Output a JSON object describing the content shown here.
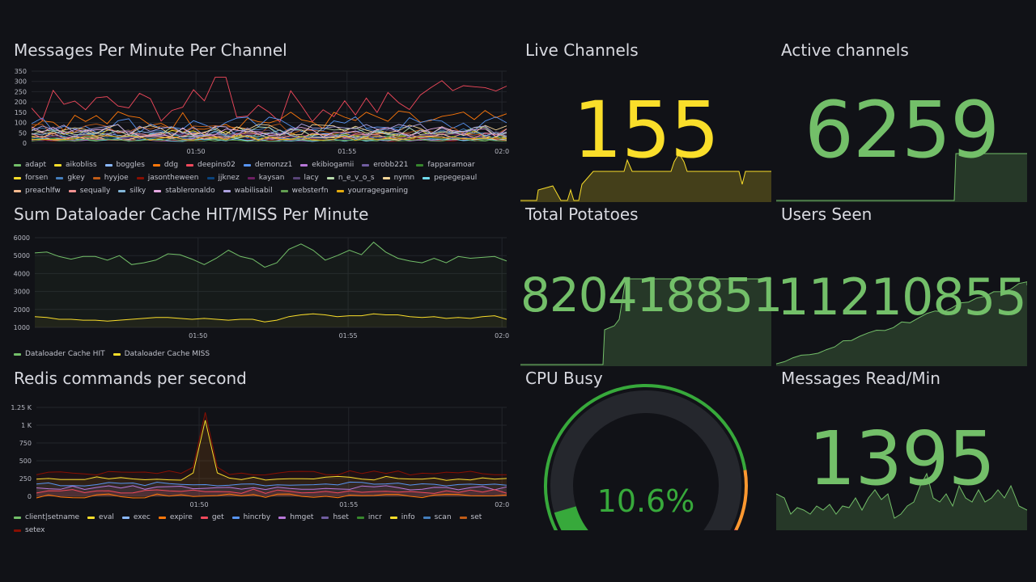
{
  "colors": {
    "green": "#73bf69",
    "yellow": "#fade2a",
    "red": "#f2495c",
    "orange": "#ff9830",
    "gaugeGreen": "#37a93b"
  },
  "messages_panel": {
    "title": "Messages Per Minute Per Channel",
    "legend": [
      {
        "name": "adapt",
        "color": "#73bf69"
      },
      {
        "name": "aikobliss",
        "color": "#fade2a"
      },
      {
        "name": "boggles",
        "color": "#8ab8ff"
      },
      {
        "name": "ddg",
        "color": "#ff780a"
      },
      {
        "name": "deepins02",
        "color": "#f2495c"
      },
      {
        "name": "demonzz1",
        "color": "#5794f2"
      },
      {
        "name": "ekibiogamii",
        "color": "#b877d9"
      },
      {
        "name": "erobb221",
        "color": "#705da0"
      },
      {
        "name": "fapparamoar",
        "color": "#37872d"
      },
      {
        "name": "forsen",
        "color": "#fade2a"
      },
      {
        "name": "gkey",
        "color": "#447ebc"
      },
      {
        "name": "hyyjoe",
        "color": "#c15c17"
      },
      {
        "name": "jasontheween",
        "color": "#890f02"
      },
      {
        "name": "jjknez",
        "color": "#0a437c"
      },
      {
        "name": "kaysan",
        "color": "#6d1f62"
      },
      {
        "name": "lacy",
        "color": "#584477"
      },
      {
        "name": "n_e_v_o_s",
        "color": "#b7dbab"
      },
      {
        "name": "nymn",
        "color": "#f4d598"
      },
      {
        "name": "pepegepaul",
        "color": "#70dbed"
      },
      {
        "name": "preachlfw",
        "color": "#f9ba8f"
      },
      {
        "name": "sequally",
        "color": "#f29191"
      },
      {
        "name": "silky",
        "color": "#82b5d8"
      },
      {
        "name": "stableronaldo",
        "color": "#e5a8e2"
      },
      {
        "name": "wabilisabil",
        "color": "#aea2e0"
      },
      {
        "name": "websterfn",
        "color": "#629e51"
      },
      {
        "name": "yourragegaming",
        "color": "#e5ac0e"
      }
    ]
  },
  "cache_panel": {
    "title": "Sum Dataloader Cache HIT/MISS Per Minute",
    "legend": [
      {
        "name": "Dataloader Cache HIT",
        "color": "#73bf69"
      },
      {
        "name": "Dataloader Cache MISS",
        "color": "#fade2a"
      }
    ]
  },
  "redis_panel": {
    "title": "Redis commands per second",
    "legend": [
      {
        "name": "client|setname",
        "color": "#73bf69"
      },
      {
        "name": "eval",
        "color": "#fade2a"
      },
      {
        "name": "exec",
        "color": "#8ab8ff"
      },
      {
        "name": "expire",
        "color": "#ff780a"
      },
      {
        "name": "get",
        "color": "#f2495c"
      },
      {
        "name": "hincrby",
        "color": "#5794f2"
      },
      {
        "name": "hmget",
        "color": "#b877d9"
      },
      {
        "name": "hset",
        "color": "#705da0"
      },
      {
        "name": "incr",
        "color": "#37872d"
      },
      {
        "name": "info",
        "color": "#fade2a"
      },
      {
        "name": "scan",
        "color": "#447ebc"
      },
      {
        "name": "set",
        "color": "#c15c17"
      },
      {
        "name": "setex",
        "color": "#890f02"
      }
    ]
  },
  "live_channels": {
    "title": "Live Channels",
    "value": "155"
  },
  "active_channels": {
    "title": "Active channels",
    "value": "6259"
  },
  "total_potatoes": {
    "title": "Total Potatoes",
    "value": "820418851"
  },
  "users_seen": {
    "title": "Users Seen",
    "value": "11210855"
  },
  "cpu_busy": {
    "title": "CPU Busy",
    "value": "10.6%",
    "percent": 10.6
  },
  "messages_read": {
    "title": "Messages Read/Min",
    "value": "1395"
  },
  "chart_data": [
    {
      "type": "line",
      "name": "messages_per_minute",
      "ylim": [
        0,
        350
      ],
      "y_ticks": [
        "350",
        "300",
        "250",
        "200",
        "150",
        "100",
        "50",
        "0"
      ],
      "x_ticks": [
        "01:50",
        "01:55",
        "02:0"
      ],
      "series_note": "26 channels, values mostly 0-120, deepins02 peaking ~320"
    },
    {
      "type": "line",
      "name": "cache_hit_miss",
      "ylim": [
        0,
        6000
      ],
      "y_ticks": [
        "6000",
        "5000",
        "4000",
        "3000",
        "2000",
        "1000"
      ],
      "x_ticks": [
        "01:50",
        "01:55",
        "02:0"
      ],
      "series": [
        {
          "name": "Dataloader Cache HIT",
          "values": [
            5150,
            5200,
            4950,
            4800,
            4950,
            4950,
            4750,
            5000,
            4500,
            4600,
            4750,
            5100,
            5050,
            4800,
            4500,
            4850,
            5300,
            4950,
            4800,
            4350,
            4600,
            5350,
            5650,
            5300,
            4750,
            5000,
            5300,
            5050,
            5750,
            5200,
            4850,
            4700,
            4600,
            4850,
            4600,
            4950,
            4850,
            4900,
            4950,
            4700
          ]
        },
        {
          "name": "Dataloader Cache MISS",
          "values": [
            1600,
            1550,
            1450,
            1450,
            1400,
            1400,
            1350,
            1400,
            1450,
            1500,
            1550,
            1550,
            1500,
            1450,
            1500,
            1450,
            1400,
            1450,
            1450,
            1300,
            1400,
            1600,
            1700,
            1750,
            1700,
            1600,
            1650,
            1650,
            1750,
            1700,
            1700,
            1600,
            1550,
            1600,
            1500,
            1550,
            1500,
            1600,
            1650,
            1450
          ]
        }
      ]
    },
    {
      "type": "area",
      "name": "redis_commands",
      "ylim": [
        0,
        1250
      ],
      "y_ticks": [
        "1.25 K",
        "1 K",
        "750",
        "500",
        "250",
        "0"
      ],
      "x_ticks": [
        "01:50",
        "01:55",
        "02:0"
      ]
    }
  ]
}
